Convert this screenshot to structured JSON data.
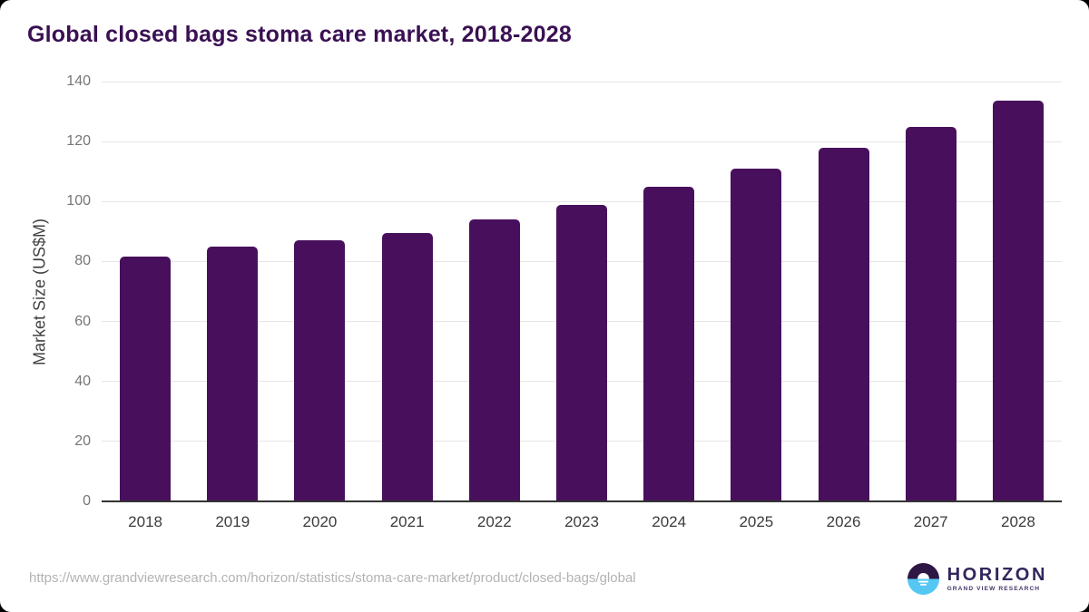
{
  "title": {
    "text": "Global closed bags stoma care market, 2018-2028"
  },
  "chart_data": {
    "type": "bar",
    "title": "Global closed bags stoma care market, 2018-2028",
    "categories": [
      "2018",
      "2019",
      "2020",
      "2021",
      "2022",
      "2023",
      "2024",
      "2025",
      "2026",
      "2027",
      "2028"
    ],
    "values": [
      81.5,
      85,
      87,
      89.5,
      94,
      99,
      105,
      111,
      118,
      125,
      133.5
    ],
    "xlabel": "",
    "ylabel": "Market Size (US$M)",
    "ylim": [
      0,
      140
    ],
    "yticks": [
      0,
      20,
      40,
      60,
      80,
      100,
      120,
      140
    ],
    "grid": true,
    "legend": false,
    "bar_color": "#48105c",
    "gridline_color": "#e6e6e6",
    "axis_line_color": "#333333"
  },
  "colors": {
    "title": "#3a1053",
    "background": "#ffffff",
    "ytick_label": "#767676",
    "xtick_label": "#3c3c3c"
  },
  "footer": {
    "source_url": "https://www.grandviewresearch.com/horizon/statistics/stoma-care-market/product/closed-bags/global",
    "logo": {
      "brand": "HORIZON",
      "tagline": "GRAND VIEW RESEARCH",
      "icon_top_color": "#2e1745",
      "icon_bottom_color": "#56c7f3"
    }
  }
}
